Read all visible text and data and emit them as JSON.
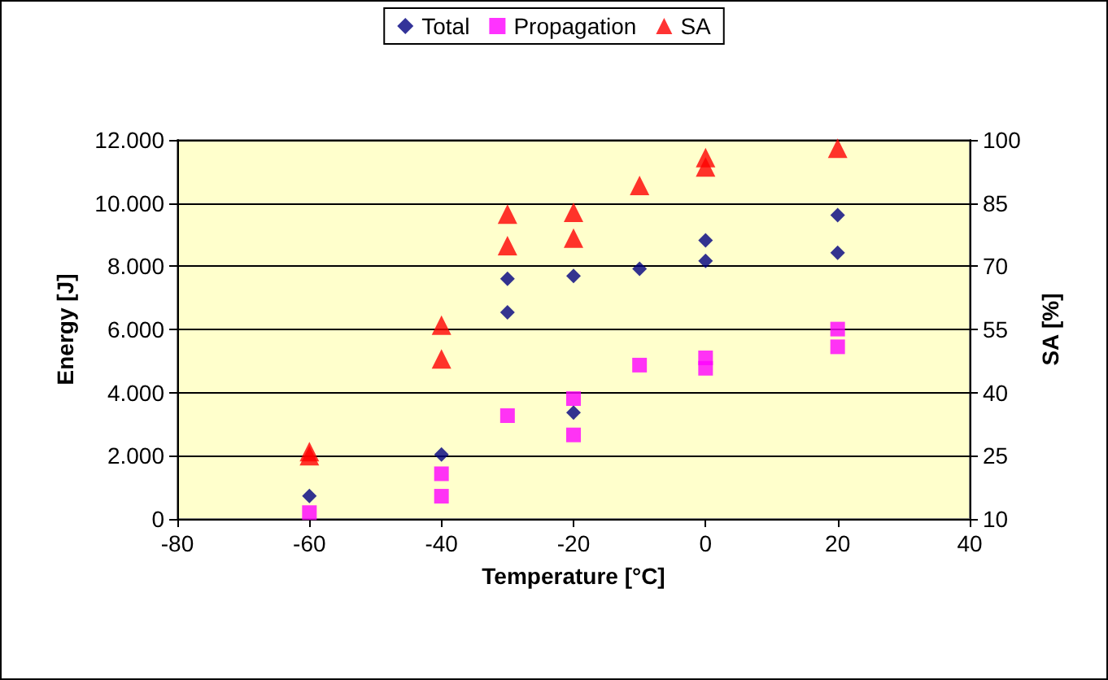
{
  "chart_data": {
    "type": "scatter",
    "xlabel": "Temperature [°C]",
    "ylabel": "Energy [J]",
    "y2label": "SA [%]",
    "xlim": [
      -80,
      40
    ],
    "xticks": [
      -80,
      -60,
      -40,
      -20,
      0,
      20,
      40
    ],
    "ylim": [
      0,
      12000
    ],
    "yticks": [
      0,
      {
        "value": 2000,
        "label": "2.000"
      },
      {
        "value": 4000,
        "label": "4.000"
      },
      {
        "value": 6000,
        "label": "6.000"
      },
      {
        "value": 8000,
        "label": "8.000"
      },
      {
        "value": 10000,
        "label": "10.000"
      },
      {
        "value": 12000,
        "label": "12.000"
      }
    ],
    "y2lim": [
      10,
      100
    ],
    "y2ticks": [
      10,
      25,
      40,
      55,
      70,
      85,
      100
    ],
    "grid": "y",
    "legend": "top",
    "series": [
      {
        "name": "Total",
        "color": "#000080",
        "marker": "diamond",
        "x": [
          -60,
          -40,
          -30,
          -30,
          -20,
          -20,
          -10,
          0,
          0,
          20,
          20
        ],
        "values": [
          730,
          2040,
          7600,
          6540,
          3370,
          7690,
          7920,
          8820,
          8170,
          9620,
          8430
        ]
      },
      {
        "name": "Propagation",
        "color": "#ff00ff",
        "marker": "square",
        "x": [
          -60,
          -40,
          -40,
          -30,
          -20,
          -20,
          -10,
          0,
          0,
          20,
          20
        ],
        "values": [
          200,
          1430,
          720,
          3270,
          3810,
          2660,
          4870,
          5100,
          4770,
          6010,
          5450
        ]
      },
      {
        "name": "SA",
        "color": "#ff0000",
        "marker": "triangle",
        "axis": "y2",
        "x": [
          -60,
          -60,
          -40,
          -40,
          -30,
          -30,
          -20,
          -20,
          -10,
          0,
          0,
          20
        ],
        "values": [
          25,
          26,
          56,
          48,
          82.4,
          74.9,
          82.8,
          76.7,
          89.2,
          95.8,
          93.6,
          98
        ]
      }
    ]
  }
}
